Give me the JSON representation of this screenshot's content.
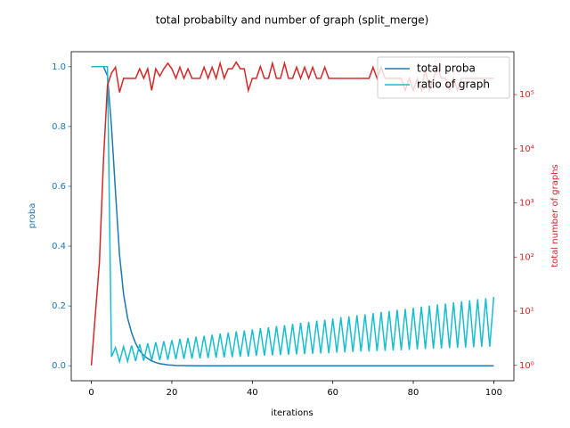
{
  "chart_data": {
    "type": "line",
    "title": "total probabilty and number of graph (split_merge)",
    "xlabel": "iterations",
    "ylabel": "proba",
    "y2label": "total number of graphs",
    "x": [
      0,
      1,
      2,
      3,
      4,
      5,
      6,
      7,
      8,
      9,
      10,
      11,
      12,
      13,
      14,
      15,
      16,
      17,
      18,
      19,
      20,
      21,
      22,
      23,
      24,
      25,
      26,
      27,
      28,
      29,
      30,
      31,
      32,
      33,
      34,
      35,
      36,
      37,
      38,
      39,
      40,
      41,
      42,
      43,
      44,
      45,
      46,
      47,
      48,
      49,
      50,
      51,
      52,
      53,
      54,
      55,
      56,
      57,
      58,
      59,
      60,
      61,
      62,
      63,
      64,
      65,
      66,
      67,
      68,
      69,
      70,
      71,
      72,
      73,
      74,
      75,
      76,
      77,
      78,
      79,
      80,
      81,
      82,
      83,
      84,
      85,
      86,
      87,
      88,
      89,
      90,
      91,
      92,
      93,
      94,
      95,
      96,
      97,
      98,
      99,
      100
    ],
    "xlim": [
      -5,
      105
    ],
    "xticks": [
      0,
      20,
      40,
      60,
      80,
      100
    ],
    "ylim": [
      -0.05,
      1.05
    ],
    "yticks": [
      {
        "value": 0,
        "label": "0.0"
      },
      0.2,
      0.4,
      0.6,
      0.8,
      {
        "value": 1,
        "label": "1.0"
      }
    ],
    "y2lim": [
      0.52,
      620000
    ],
    "y2scale": "log",
    "y2ticks": [
      {
        "value": 1,
        "label": "10⁰"
      },
      {
        "value": 10,
        "label": "10¹"
      },
      {
        "value": 100,
        "label": "10²"
      },
      {
        "value": 1000,
        "label": "10³"
      },
      {
        "value": 10000,
        "label": "10⁴"
      },
      {
        "value": 100000,
        "label": "10⁵"
      }
    ],
    "legend": "upper right",
    "series": [
      {
        "name": "total proba",
        "color": "#1f77b4",
        "values": [
          1,
          1,
          1,
          1,
          0.97,
          0.8,
          0.58,
          0.37,
          0.24,
          0.16,
          0.11,
          0.075,
          0.05,
          0.035,
          0.024,
          0.016,
          0.011,
          0.007,
          0.005,
          0.003,
          0.002,
          0.001,
          0.0007,
          0.0005,
          0.0003,
          0.0002,
          0.0001,
          0,
          0,
          0,
          0,
          0,
          0,
          0,
          0,
          0,
          0,
          0,
          0,
          0,
          0,
          0,
          0,
          0,
          0,
          0,
          0,
          0,
          0,
          0,
          0,
          0,
          0,
          0,
          0,
          0,
          0,
          0,
          0,
          0,
          0,
          0,
          0,
          0,
          0,
          0,
          0,
          0,
          0,
          0,
          0,
          0,
          0,
          0,
          0,
          0,
          0,
          0,
          0,
          0,
          0,
          0,
          0,
          0,
          0,
          0,
          0,
          0,
          0,
          0,
          0,
          0,
          0,
          0,
          0,
          0,
          0,
          0,
          0,
          0,
          0
        ]
      },
      {
        "name": "ratio of graph",
        "color": "#17becf",
        "values": [
          1,
          1,
          1,
          1,
          1,
          0.03,
          0.061,
          0.014,
          0.064,
          0.015,
          0.068,
          0.016,
          0.072,
          0.017,
          0.075,
          0.018,
          0.079,
          0.019,
          0.082,
          0.02,
          0.086,
          0.022,
          0.09,
          0.023,
          0.093,
          0.024,
          0.097,
          0.025,
          0.1,
          0.026,
          0.104,
          0.027,
          0.108,
          0.028,
          0.111,
          0.029,
          0.115,
          0.03,
          0.118,
          0.031,
          0.122,
          0.033,
          0.126,
          0.034,
          0.129,
          0.035,
          0.133,
          0.036,
          0.136,
          0.037,
          0.14,
          0.038,
          0.144,
          0.039,
          0.147,
          0.04,
          0.151,
          0.041,
          0.154,
          0.042,
          0.158,
          0.044,
          0.162,
          0.045,
          0.165,
          0.046,
          0.169,
          0.047,
          0.172,
          0.048,
          0.176,
          0.049,
          0.18,
          0.05,
          0.183,
          0.051,
          0.187,
          0.052,
          0.19,
          0.053,
          0.194,
          0.055,
          0.198,
          0.056,
          0.201,
          0.057,
          0.205,
          0.058,
          0.208,
          0.059,
          0.212,
          0.06,
          0.216,
          0.061,
          0.219,
          0.062,
          0.223,
          0.063,
          0.226,
          0.064,
          0.23
        ]
      },
      {
        "color": "#d62728",
        "axis": "y2",
        "values": [
          1,
          9,
          80,
          6000,
          150000,
          250000,
          320000,
          110000,
          200000,
          200000,
          200000,
          200000,
          300000,
          200000,
          300000,
          120000,
          300000,
          220000,
          300000,
          380000,
          300000,
          200000,
          320000,
          200000,
          300000,
          200000,
          200000,
          200000,
          320000,
          200000,
          320000,
          200000,
          380000,
          200000,
          300000,
          300000,
          400000,
          300000,
          300000,
          120000,
          200000,
          200000,
          330000,
          200000,
          200000,
          380000,
          200000,
          200000,
          380000,
          200000,
          200000,
          320000,
          200000,
          320000,
          200000,
          320000,
          200000,
          200000,
          320000,
          200000,
          200000,
          200000,
          200000,
          200000,
          200000,
          200000,
          200000,
          200000,
          200000,
          200000,
          320000,
          200000,
          320000,
          200000,
          200000,
          200000,
          200000,
          200000,
          120000,
          200000,
          120000,
          200000,
          120000,
          300000,
          120000,
          200000,
          320000,
          200000,
          200000,
          120000,
          200000,
          120000,
          200000,
          200000,
          200000,
          200000,
          200000,
          200000,
          200000,
          200000,
          200000
        ]
      }
    ]
  }
}
